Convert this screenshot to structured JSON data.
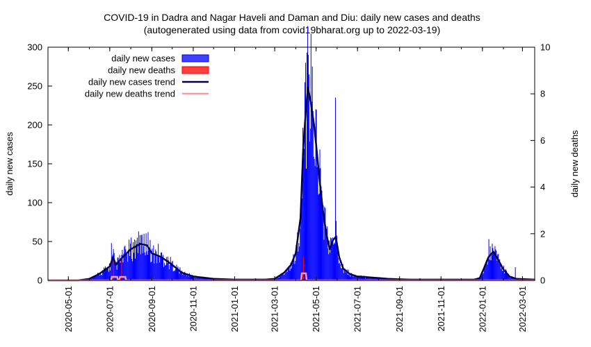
{
  "chart_data": {
    "type": "bar",
    "title_line1": "COVID-19 in Dadra and Nagar Haveli and Daman and Diu: daily new cases and deaths",
    "title_line2": "(autogenerated using data from covid19bharat.org up to 2022-03-19)",
    "ylabel_left": "daily new cases",
    "ylabel_right": "daily new deaths",
    "x_range": [
      "2020-04-01",
      "2022-03-19"
    ],
    "ylim_left": [
      0,
      300
    ],
    "ylim_right": [
      0,
      10
    ],
    "y_ticks_left": [
      "0",
      "50",
      "100",
      "150",
      "200",
      "250",
      "300"
    ],
    "y_ticks_right": [
      "0",
      "2",
      "4",
      "6",
      "8",
      "10"
    ],
    "x_ticks": [
      "2020-05-01",
      "2020-07-01",
      "2020-09-01",
      "2020-11-01",
      "2021-01-01",
      "2021-03-01",
      "2021-05-01",
      "2021-07-01",
      "2021-09-01",
      "2021-11-01",
      "2022-01-01",
      "2022-03-01"
    ],
    "grid": false,
    "legend_position": "top-left",
    "legend": [
      {
        "label": "daily new cases",
        "kind": "box",
        "color": "#0000ff"
      },
      {
        "label": "daily new deaths",
        "kind": "box",
        "color": "#ff0000"
      },
      {
        "label": "daily new cases trend",
        "kind": "line",
        "color": "#00004d"
      },
      {
        "label": "daily new deaths trend",
        "kind": "line",
        "color": "#ff9999"
      }
    ],
    "colors": {
      "cases_bar": "#0000ff",
      "deaths_bar": "#ff0000",
      "cases_trend": "#00004d",
      "deaths_trend": "#ff9999"
    },
    "series": [
      {
        "name": "daily new cases trend",
        "points": [
          [
            "2020-04-01",
            0
          ],
          [
            "2020-05-15",
            0
          ],
          [
            "2020-06-01",
            2
          ],
          [
            "2020-06-15",
            8
          ],
          [
            "2020-07-01",
            18
          ],
          [
            "2020-07-06",
            30
          ],
          [
            "2020-07-10",
            20
          ],
          [
            "2020-07-20",
            30
          ],
          [
            "2020-08-01",
            40
          ],
          [
            "2020-08-15",
            47
          ],
          [
            "2020-08-25",
            45
          ],
          [
            "2020-09-01",
            35
          ],
          [
            "2020-09-15",
            30
          ],
          [
            "2020-10-01",
            20
          ],
          [
            "2020-10-15",
            10
          ],
          [
            "2020-11-01",
            5
          ],
          [
            "2020-12-01",
            2
          ],
          [
            "2021-01-01",
            1
          ],
          [
            "2021-02-15",
            1
          ],
          [
            "2021-03-01",
            2
          ],
          [
            "2021-03-15",
            10
          ],
          [
            "2021-03-25",
            20
          ],
          [
            "2021-04-01",
            35
          ],
          [
            "2021-04-08",
            80
          ],
          [
            "2021-04-12",
            170
          ],
          [
            "2021-04-16",
            220
          ],
          [
            "2021-04-19",
            248
          ],
          [
            "2021-04-23",
            230
          ],
          [
            "2021-04-28",
            200
          ],
          [
            "2021-05-01",
            175
          ],
          [
            "2021-05-06",
            130
          ],
          [
            "2021-05-11",
            90
          ],
          [
            "2021-05-16",
            60
          ],
          [
            "2021-05-21",
            40
          ],
          [
            "2021-05-26",
            52
          ],
          [
            "2021-05-30",
            56
          ],
          [
            "2021-06-04",
            30
          ],
          [
            "2021-06-10",
            15
          ],
          [
            "2021-06-20",
            8
          ],
          [
            "2021-07-01",
            5
          ],
          [
            "2021-08-01",
            3
          ],
          [
            "2021-08-15",
            2
          ],
          [
            "2021-09-15",
            1
          ],
          [
            "2021-12-20",
            1
          ],
          [
            "2021-12-28",
            3
          ],
          [
            "2022-01-03",
            15
          ],
          [
            "2022-01-10",
            30
          ],
          [
            "2022-01-17",
            37
          ],
          [
            "2022-01-22",
            30
          ],
          [
            "2022-02-01",
            14
          ],
          [
            "2022-02-10",
            5
          ],
          [
            "2022-02-20",
            2
          ],
          [
            "2022-03-19",
            1
          ]
        ]
      },
      {
        "name": "daily new deaths trend",
        "points": [
          [
            "2020-04-01",
            0
          ],
          [
            "2020-07-03",
            0
          ],
          [
            "2020-07-04",
            0.15
          ],
          [
            "2020-07-12",
            0.15
          ],
          [
            "2020-07-13",
            0
          ],
          [
            "2020-07-15",
            0
          ],
          [
            "2020-07-16",
            0.15
          ],
          [
            "2020-07-24",
            0.15
          ],
          [
            "2020-07-25",
            0
          ],
          [
            "2021-04-09",
            0
          ],
          [
            "2021-04-10",
            0.3
          ],
          [
            "2021-04-16",
            0.3
          ],
          [
            "2021-04-17",
            0
          ],
          [
            "2022-03-19",
            0
          ]
        ]
      }
    ],
    "spikes_cases": [
      [
        "2020-07-03",
        48
      ],
      [
        "2020-07-08",
        25
      ],
      [
        "2020-07-24",
        40
      ],
      [
        "2020-08-10",
        55
      ],
      [
        "2020-08-20",
        60
      ],
      [
        "2020-08-26",
        62
      ],
      [
        "2020-09-10",
        47
      ],
      [
        "2020-09-22",
        30
      ],
      [
        "2021-04-15",
        280
      ],
      [
        "2021-04-17",
        293
      ],
      [
        "2021-04-20",
        265
      ],
      [
        "2021-04-24",
        230
      ],
      [
        "2021-05-29",
        235
      ],
      [
        "2022-01-10",
        53
      ],
      [
        "2022-01-20",
        40
      ],
      [
        "2022-02-18",
        17
      ]
    ],
    "deaths_bars": [
      [
        "2020-07-06",
        1
      ],
      [
        "2020-07-18",
        1
      ],
      [
        "2021-04-12",
        1
      ]
    ]
  }
}
